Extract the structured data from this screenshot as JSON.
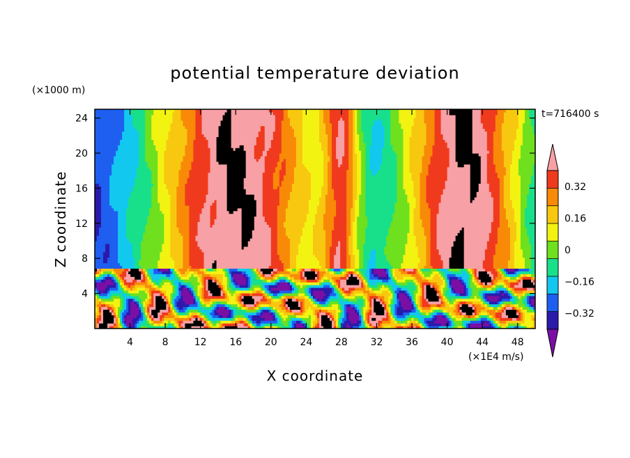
{
  "chart_data": {
    "type": "heatmap",
    "title": "potential temperature deviation",
    "xlabel": "X coordinate",
    "ylabel": "Z coordinate",
    "x_unit": "(×1E4 m/s)",
    "y_unit": "(×1000 m)",
    "time_label": "t=716400 s",
    "xlim": [
      0,
      50
    ],
    "ylim": [
      0,
      25
    ],
    "x_ticks": [
      "4",
      "8",
      "12",
      "16",
      "20",
      "24",
      "28",
      "32",
      "36",
      "40",
      "44",
      "48"
    ],
    "y_ticks": [
      "4",
      "8",
      "12",
      "16",
      "20",
      "24"
    ],
    "colorbar": {
      "tick_labels": [
        "0.32",
        "0.16",
        "0",
        "−0.16",
        "−0.32"
      ],
      "tick_values": [
        0.32,
        0.16,
        0,
        -0.16,
        -0.32
      ],
      "levels": [
        -0.4,
        -0.32,
        -0.24,
        -0.16,
        -0.08,
        0,
        0.08,
        0.16,
        0.24,
        0.32,
        0.4
      ],
      "colors": [
        "#7b0fa5",
        "#2a1bab",
        "#1e5ff0",
        "#12c8ee",
        "#18e08a",
        "#6fe01e",
        "#f3f312",
        "#f8c810",
        "#f88a08",
        "#f03a1e",
        "#f7a0a6"
      ],
      "extend": "both"
    },
    "inversion_height": 7
  }
}
